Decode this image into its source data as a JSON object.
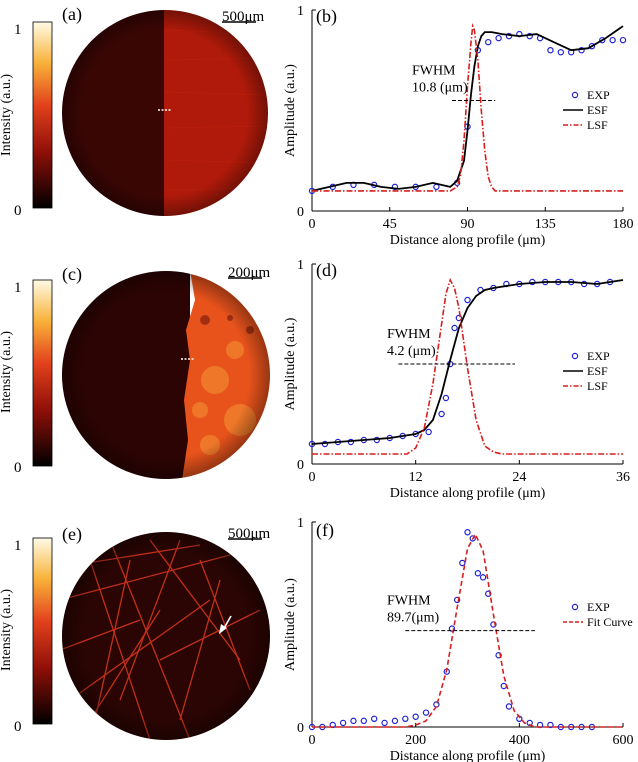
{
  "panels": [
    {
      "colorbar": {
        "label": "Intensity (a.u.)",
        "max_label": "1",
        "min_label": "0"
      },
      "image": {
        "panel_label": "(a)",
        "scale_bar": "500μm",
        "content": "sharp vertical edge",
        "edge_at": 0.46,
        "left_color": "#3a0604",
        "right_color": "#b01a0a"
      }
    },
    {
      "colorbar": {
        "label": "Intensity (a.u.)",
        "max_label": "1",
        "min_label": "0"
      },
      "image": {
        "panel_label": "(c)",
        "scale_bar": "200μm",
        "content": "sharp vertical edge",
        "edge_at": 0.62,
        "left_color": "#2c0403",
        "right_color": "#e8531c"
      }
    },
    {
      "colorbar": {
        "label": "Intensity (a.u.)",
        "max_label": "1",
        "min_label": "0"
      },
      "image": {
        "panel_label": "(e)",
        "scale_bar": "500μm",
        "content": "fiber strands with arrow",
        "background_color": "#2a0503",
        "fiber_color": "#c2301a"
      }
    }
  ],
  "chart_data": [
    {
      "type": "line",
      "panel_label": "(b)",
      "xlabel": "Distance along profile (μm)",
      "ylabel": "Amplitude (a.u.)",
      "xlim": [
        0,
        180
      ],
      "ylim": [
        0,
        1
      ],
      "xticks": [
        "0",
        "45",
        "90",
        "135",
        "180"
      ],
      "yticks": [
        "0",
        "1"
      ],
      "annotation": {
        "line1": "FWHM",
        "line2": "10.8 (μm)",
        "y": 0.55,
        "x_from": 81,
        "x_to": 106
      },
      "legend": {
        "position": "right",
        "entries": [
          "EXP",
          "ESF",
          "LSF"
        ]
      },
      "series": [
        {
          "name": "EXP",
          "style": "markers",
          "color": "#1f22d6",
          "x": [
            0,
            12,
            24,
            36,
            48,
            60,
            72,
            84,
            90,
            96,
            102,
            108,
            114,
            120,
            126,
            132,
            138,
            144,
            150,
            156,
            162,
            168,
            174,
            180
          ],
          "y": [
            0.1,
            0.12,
            0.13,
            0.13,
            0.12,
            0.12,
            0.12,
            0.14,
            0.42,
            0.8,
            0.84,
            0.86,
            0.87,
            0.88,
            0.87,
            0.86,
            0.8,
            0.79,
            0.79,
            0.8,
            0.82,
            0.85,
            0.85,
            0.85
          ]
        },
        {
          "name": "ESF",
          "style": "solid",
          "color": "#000000",
          "x": [
            0,
            10,
            20,
            30,
            40,
            50,
            60,
            70,
            80,
            84,
            88,
            90,
            92,
            94,
            96,
            98,
            100,
            104,
            110,
            120,
            130,
            140,
            150,
            160,
            170,
            180
          ],
          "y": [
            0.1,
            0.12,
            0.14,
            0.14,
            0.12,
            0.11,
            0.12,
            0.14,
            0.12,
            0.15,
            0.25,
            0.4,
            0.58,
            0.72,
            0.82,
            0.87,
            0.89,
            0.89,
            0.88,
            0.87,
            0.88,
            0.84,
            0.8,
            0.81,
            0.86,
            0.92
          ]
        },
        {
          "name": "LSF",
          "style": "dashdot",
          "color": "#d81e1e",
          "x": [
            0,
            80,
            84,
            86,
            88,
            90,
            92,
            93,
            94,
            96,
            98,
            100,
            102,
            104,
            106,
            110,
            180
          ],
          "y": [
            0.1,
            0.1,
            0.12,
            0.18,
            0.35,
            0.62,
            0.84,
            0.92,
            0.9,
            0.75,
            0.5,
            0.3,
            0.17,
            0.12,
            0.1,
            0.1,
            0.1
          ]
        }
      ]
    },
    {
      "type": "line",
      "panel_label": "(d)",
      "xlabel": "Distance along profile (μm)",
      "ylabel": "Amplitude (a.u.)",
      "xlim": [
        0,
        36
      ],
      "ylim": [
        0,
        1
      ],
      "xticks": [
        "0",
        "12",
        "24",
        "36"
      ],
      "yticks": [
        "0",
        "1"
      ],
      "annotation": {
        "line1": "FWHM",
        "line2": "4.2 (μm)",
        "y": 0.5,
        "x_from": 10,
        "x_to": 23.5
      },
      "legend": {
        "position": "right",
        "entries": [
          "EXP",
          "ESF",
          "LSF"
        ]
      },
      "series": [
        {
          "name": "EXP",
          "style": "markers",
          "color": "#1f22d6",
          "x": [
            0,
            1.5,
            3,
            4.5,
            6,
            7.5,
            9,
            10.5,
            12,
            13.5,
            15,
            15.5,
            16,
            16.5,
            17,
            18,
            19.5,
            21,
            22.5,
            24,
            25.5,
            27,
            28.5,
            30,
            31.5,
            33,
            34.5
          ],
          "y": [
            0.1,
            0.1,
            0.11,
            0.11,
            0.12,
            0.12,
            0.13,
            0.14,
            0.15,
            0.16,
            0.25,
            0.33,
            0.5,
            0.68,
            0.73,
            0.82,
            0.87,
            0.88,
            0.9,
            0.9,
            0.91,
            0.91,
            0.91,
            0.91,
            0.9,
            0.9,
            0.91
          ]
        },
        {
          "name": "ESF",
          "style": "solid",
          "color": "#000000",
          "x": [
            0,
            3,
            6,
            9,
            12,
            13,
            14,
            15,
            16,
            17,
            18,
            19,
            20,
            21,
            24,
            27,
            30,
            33,
            36
          ],
          "y": [
            0.1,
            0.11,
            0.12,
            0.13,
            0.15,
            0.17,
            0.22,
            0.35,
            0.52,
            0.68,
            0.78,
            0.84,
            0.87,
            0.88,
            0.9,
            0.91,
            0.91,
            0.9,
            0.92
          ]
        },
        {
          "name": "LSF",
          "style": "dashdot",
          "color": "#d81e1e",
          "x": [
            0,
            11,
            12,
            13,
            14,
            15,
            15.5,
            16,
            16.5,
            17,
            18,
            19,
            20,
            21,
            22,
            36
          ],
          "y": [
            0.05,
            0.05,
            0.08,
            0.18,
            0.4,
            0.7,
            0.85,
            0.92,
            0.88,
            0.78,
            0.48,
            0.22,
            0.09,
            0.06,
            0.05,
            0.05
          ]
        }
      ]
    },
    {
      "type": "line",
      "panel_label": "(f)",
      "xlabel": "Distance along profile (μm)",
      "ylabel": "Amplitude (a.u.)",
      "xlim": [
        0,
        600
      ],
      "ylim": [
        0,
        1
      ],
      "xticks": [
        "0",
        "200",
        "400",
        "600"
      ],
      "yticks": [
        "0",
        "1"
      ],
      "annotation": {
        "line1": "FWHM",
        "line2": "89.7(μm)",
        "y": 0.47,
        "x_from": 180,
        "x_to": 430
      },
      "legend": {
        "position": "right",
        "entries": [
          "EXP",
          "Fit Curve"
        ]
      },
      "series": [
        {
          "name": "EXP",
          "style": "markers",
          "color": "#1f22d6",
          "x": [
            0,
            20,
            40,
            60,
            80,
            100,
            120,
            140,
            160,
            180,
            200,
            220,
            240,
            260,
            270,
            280,
            290,
            300,
            310,
            320,
            330,
            340,
            350,
            360,
            370,
            380,
            400,
            420,
            440,
            460,
            480,
            500,
            520,
            540
          ],
          "y": [
            0.0,
            0.0,
            0.01,
            0.02,
            0.03,
            0.03,
            0.04,
            0.02,
            0.03,
            0.04,
            0.05,
            0.07,
            0.11,
            0.27,
            0.48,
            0.62,
            0.8,
            0.95,
            0.92,
            0.75,
            0.73,
            0.65,
            0.5,
            0.35,
            0.2,
            0.1,
            0.04,
            0.02,
            0.01,
            0.01,
            0.0,
            0.0,
            0.0,
            0.0
          ]
        },
        {
          "name": "Fit Curve",
          "style": "dashed",
          "color": "#d81e1e",
          "x": [
            0,
            180,
            200,
            220,
            240,
            260,
            280,
            300,
            315,
            330,
            350,
            370,
            390,
            410,
            430,
            450,
            600
          ],
          "y": [
            0.0,
            0.0,
            0.01,
            0.03,
            0.1,
            0.28,
            0.58,
            0.87,
            0.94,
            0.86,
            0.55,
            0.25,
            0.08,
            0.02,
            0.0,
            0.0,
            0.0
          ]
        }
      ]
    }
  ]
}
